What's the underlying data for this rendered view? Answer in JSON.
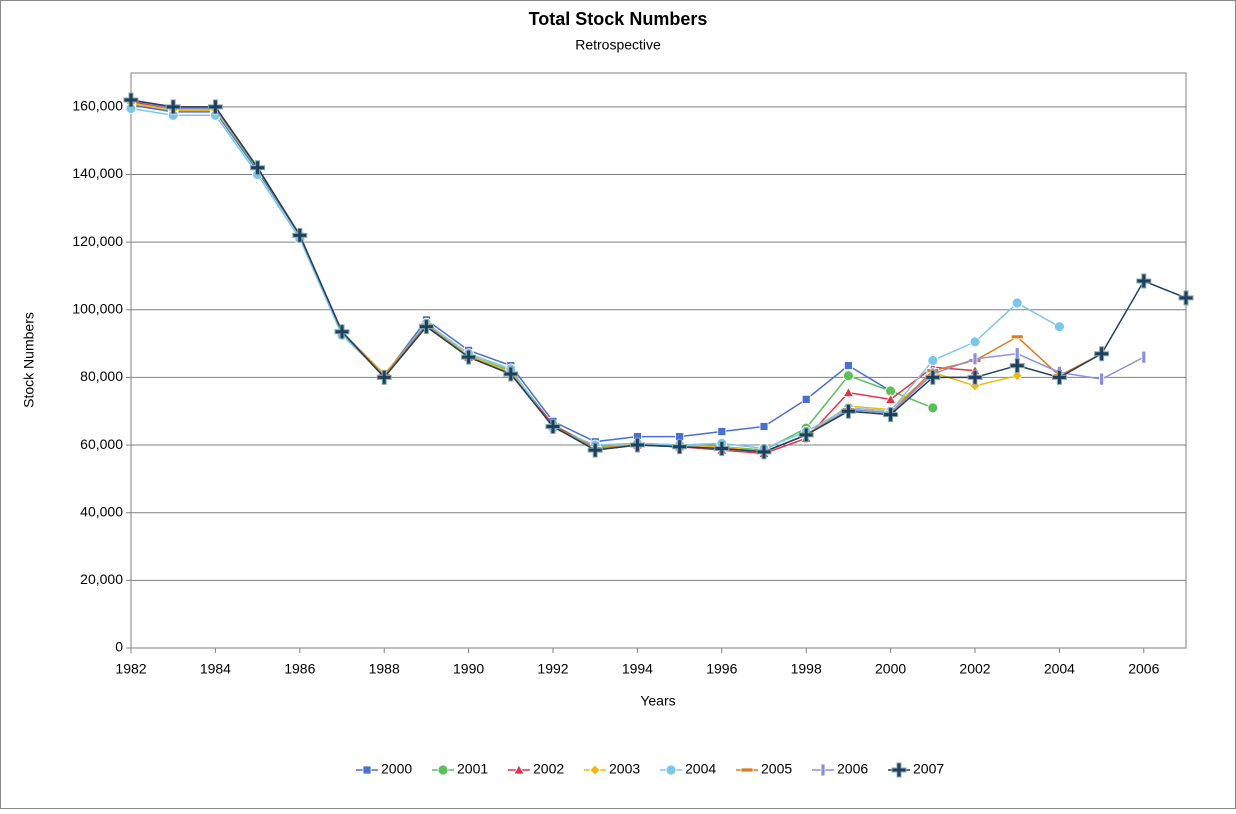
{
  "chart_data": {
    "type": "line",
    "title": "Total Stock Numbers",
    "subtitle": "Retrospective",
    "x_label": "Years",
    "y_label": "Stock Numbers",
    "x": [
      1982,
      1983,
      1984,
      1985,
      1986,
      1987,
      1988,
      1989,
      1990,
      1991,
      1992,
      1993,
      1994,
      1995,
      1996,
      1997,
      1998,
      1999,
      2000,
      2001,
      2002,
      2003,
      2004,
      2005,
      2006,
      2007
    ],
    "xlim": [
      1982,
      2007
    ],
    "xticks": [
      1982,
      1984,
      1986,
      1988,
      1990,
      1992,
      1994,
      1996,
      1998,
      2000,
      2002,
      2004,
      2006
    ],
    "ylim": [
      0,
      170000
    ],
    "yticks": [
      0,
      {
        "value": 20000,
        "label": "20,000"
      },
      {
        "value": 40000,
        "label": "40,000"
      },
      {
        "value": 60000,
        "label": "60,000"
      },
      {
        "value": 80000,
        "label": "80,000"
      },
      {
        "value": 100000,
        "label": "100,000"
      },
      {
        "value": 120000,
        "label": "120,000"
      },
      {
        "value": 140000,
        "label": "140,000"
      },
      {
        "value": 160000,
        "label": "160,000"
      }
    ],
    "grid": true,
    "legend": "bottom",
    "series": [
      {
        "name": "2000",
        "color": "#4a6fd1",
        "marker": "square",
        "values": [
          160500,
          158500,
          158500,
          141000,
          122000,
          93000,
          80500,
          97000,
          88000,
          83500,
          67000,
          61000,
          62500,
          62500,
          64000,
          65500,
          73500,
          83500,
          76000,
          null,
          null,
          null,
          null,
          null,
          null,
          null
        ]
      },
      {
        "name": "2001",
        "color": "#5cbf5c",
        "marker": "circle",
        "values": [
          161000,
          159000,
          159000,
          141500,
          122000,
          93000,
          80500,
          96000,
          86500,
          82000,
          66000,
          59500,
          60500,
          60000,
          59500,
          58500,
          65000,
          80500,
          76000,
          71000,
          null,
          null,
          null,
          null,
          null,
          null
        ]
      },
      {
        "name": "2002",
        "color": "#e0344b",
        "marker": "triangle",
        "values": [
          161500,
          159500,
          159500,
          142000,
          122000,
          93500,
          80500,
          95500,
          86000,
          81500,
          66000,
          59000,
          60000,
          59500,
          58500,
          57500,
          62000,
          75500,
          73500,
          83000,
          82000,
          null,
          null,
          null,
          null,
          null
        ]
      },
      {
        "name": "2003",
        "color": "#f2b90c",
        "marker": "diamond",
        "values": [
          161000,
          159000,
          159000,
          142000,
          122000,
          93500,
          81000,
          95500,
          86500,
          81500,
          65500,
          59000,
          60500,
          60000,
          59500,
          58000,
          63000,
          71500,
          70500,
          81500,
          77500,
          80500,
          null,
          null,
          null,
          null
        ]
      },
      {
        "name": "2004",
        "color": "#7cc6ea",
        "marker": "circle",
        "values": [
          159500,
          157500,
          157500,
          140000,
          121000,
          92500,
          80500,
          96000,
          87000,
          82500,
          65000,
          60000,
          60500,
          60000,
          60500,
          59000,
          64000,
          71000,
          70000,
          85000,
          90500,
          102000,
          95000,
          null,
          null,
          null
        ]
      },
      {
        "name": "2005",
        "color": "#e07a1f",
        "marker": "dash",
        "values": [
          162000,
          160000,
          160000,
          142000,
          122000,
          93500,
          80500,
          95500,
          86000,
          81000,
          65500,
          59000,
          60000,
          59500,
          59000,
          58000,
          63000,
          70500,
          69500,
          82000,
          85000,
          92000,
          80500,
          87000,
          null,
          null
        ]
      },
      {
        "name": "2006",
        "color": "#8e8ee0",
        "marker": "bar",
        "values": [
          162000,
          159500,
          159500,
          142000,
          122000,
          93500,
          80000,
          95000,
          86000,
          81000,
          65500,
          58500,
          60000,
          59500,
          59000,
          58000,
          63000,
          70500,
          69500,
          81000,
          85500,
          87000,
          81500,
          79500,
          86000,
          null
        ]
      },
      {
        "name": "2007",
        "color": "#1f3f5f",
        "marker": "plus",
        "values": [
          162000,
          160000,
          160000,
          142000,
          122000,
          93500,
          80000,
          95000,
          86000,
          81000,
          65500,
          58500,
          60000,
          59500,
          59000,
          58000,
          63000,
          70000,
          69000,
          80000,
          80000,
          83500,
          80000,
          87000,
          108500,
          103500
        ]
      }
    ]
  }
}
